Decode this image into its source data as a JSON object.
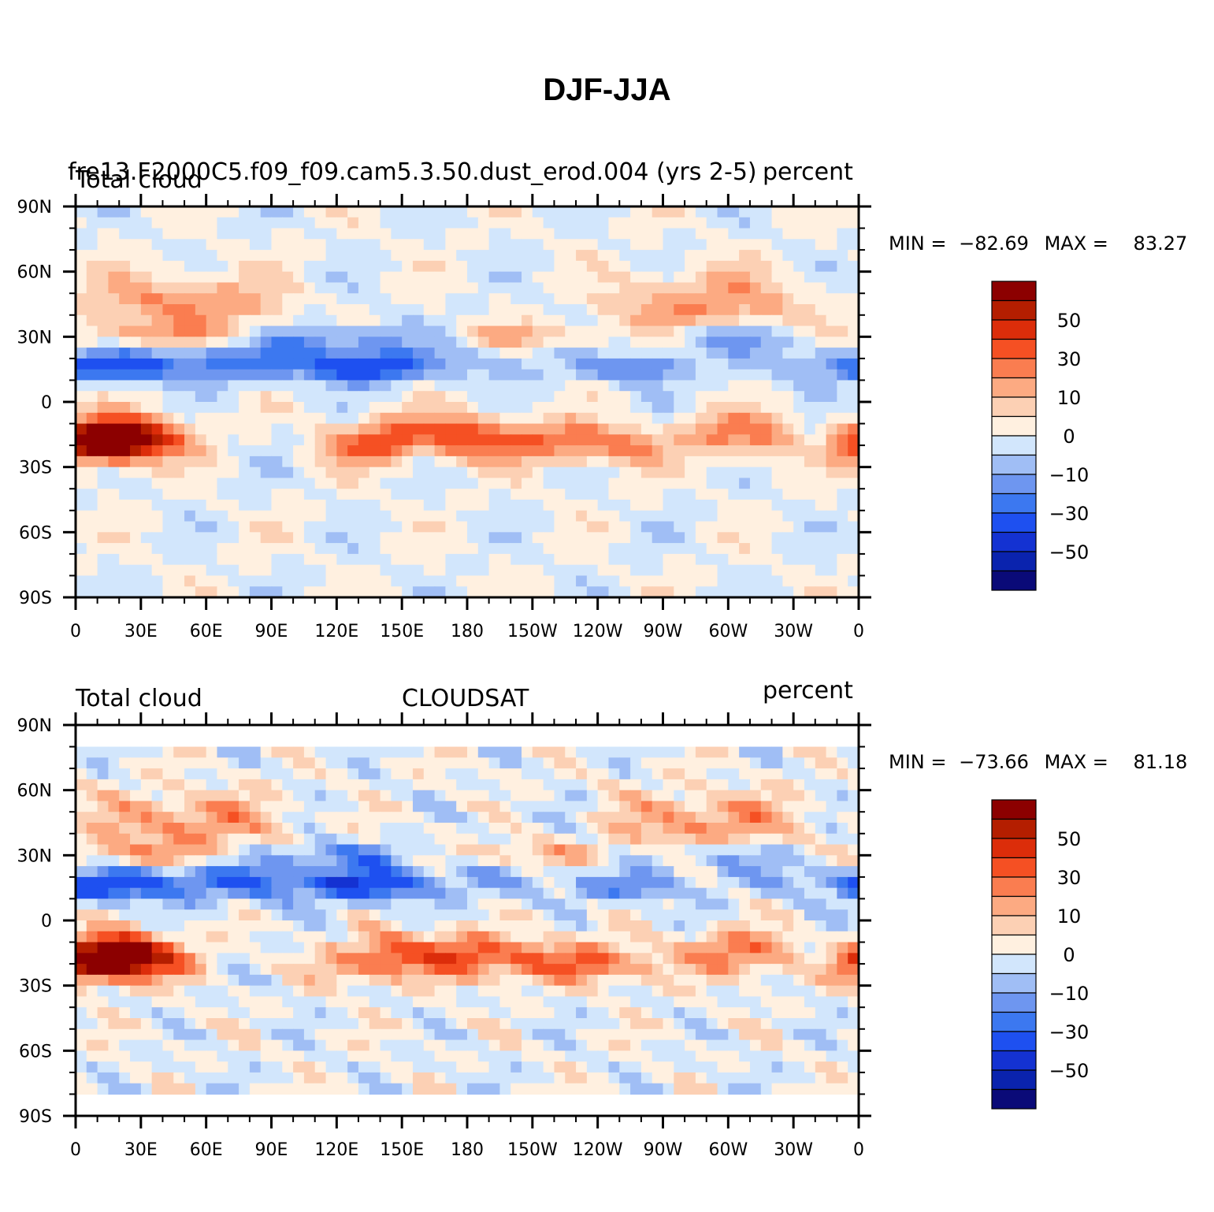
{
  "title": "DJF-JJA",
  "colorbar": {
    "colors": [
      "#0a0a78",
      "#0a23ae",
      "#1432d2",
      "#1e50f0",
      "#3c78f0",
      "#6e96f0",
      "#a0bef5",
      "#d2e6fc",
      "#fff0e0",
      "#fcd0b4",
      "#fcaa82",
      "#fa7d50",
      "#f55023",
      "#dc2d0a",
      "#b41e00",
      "#8c0000"
    ],
    "labels": [
      "50",
      "30",
      "10",
      "0",
      "−10",
      "−30",
      "−50"
    ]
  },
  "axes": {
    "lat_ticks": [
      "90N",
      "60N",
      "30N",
      "0",
      "30S",
      "60S",
      "90S"
    ],
    "lon_ticks": [
      "0",
      "30E",
      "60E",
      "90E",
      "120E",
      "150E",
      "180",
      "150W",
      "120W",
      "90W",
      "60W",
      "30W",
      "0"
    ]
  },
  "panels": [
    {
      "title_left": "Total cloud",
      "title_center": "fre13.F2000C5.f09_f09.cam5.3.50.dust_erod.004 (yrs 2-5)",
      "title_right": "percent",
      "min_label": "MIN =",
      "min_value": "−82.69",
      "max_label": "MAX =",
      "max_value": "83.27"
    },
    {
      "title_left": "Total cloud",
      "title_center": "CLOUDSAT",
      "title_right": "percent",
      "min_label": "MIN =",
      "min_value": "−73.66",
      "max_label": "MAX =",
      "max_value": "81.18"
    }
  ]
}
